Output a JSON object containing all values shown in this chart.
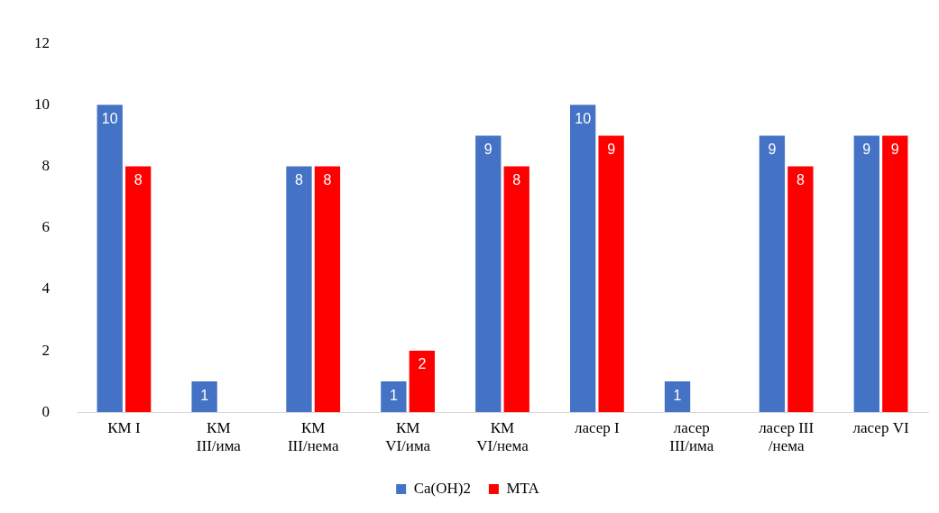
{
  "chart_data": {
    "type": "bar",
    "categories": [
      "КМ I",
      "КМ III/има",
      "КМ III/нема",
      "КМ VI/има",
      "КМ VI/нема",
      "ласер I",
      "ласер III/има",
      "ласер III /нема",
      "ласер VI"
    ],
    "series": [
      {
        "name": "Ca(OH)2",
        "color": "#4472c4",
        "values": [
          10,
          1,
          8,
          1,
          9,
          10,
          1,
          9,
          9
        ],
        "value_labels": [
          "10",
          "1",
          "8",
          "1",
          "9",
          "10",
          "1",
          "9",
          "9"
        ]
      },
      {
        "name": "MTA",
        "color": "#ff0000",
        "values": [
          8,
          0,
          8,
          2,
          8,
          9,
          0,
          8,
          9
        ],
        "value_labels": [
          "8",
          null,
          "8",
          "2",
          "8",
          "9",
          null,
          "8",
          "9"
        ]
      }
    ],
    "ylim": [
      0,
      12
    ],
    "yticks": [
      0,
      2,
      4,
      6,
      8,
      10,
      12
    ],
    "grid": false,
    "legend": "bottom"
  }
}
